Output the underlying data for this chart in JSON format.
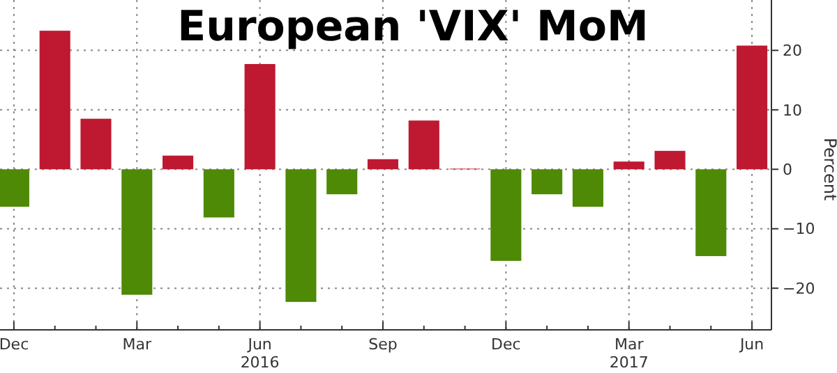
{
  "chart_data": {
    "type": "bar",
    "title": "European 'VIX' MoM",
    "ylabel": "Percent",
    "categories": [
      "Dec",
      null,
      null,
      "Mar",
      null,
      null,
      "Jun",
      null,
      null,
      "Sep",
      null,
      null,
      "Dec",
      null,
      null,
      "Mar",
      null,
      null,
      "Jun"
    ],
    "values": [
      -6.3,
      23.3,
      8.5,
      -21.1,
      2.3,
      -8.1,
      17.7,
      -22.3,
      -4.2,
      1.7,
      8.2,
      0.1,
      -15.4,
      -4.2,
      -6.3,
      1.3,
      3.1,
      -14.6,
      20.8
    ],
    "colors": [
      "#4e8a05",
      "#be1931",
      "#be1931",
      "#4e8a05",
      "#be1931",
      "#4e8a05",
      "#be1931",
      "#4e8a05",
      "#4e8a05",
      "#be1931",
      "#be1931",
      "#be1931",
      "#4e8a05",
      "#4e8a05",
      "#4e8a05",
      "#be1931",
      "#be1931",
      "#4e8a05",
      "#be1931"
    ],
    "ylim": [
      -27,
      28
    ],
    "yticks": [
      -20,
      -10,
      0,
      10,
      20
    ],
    "grid": true,
    "annotations": [
      "2016",
      "2017"
    ]
  }
}
